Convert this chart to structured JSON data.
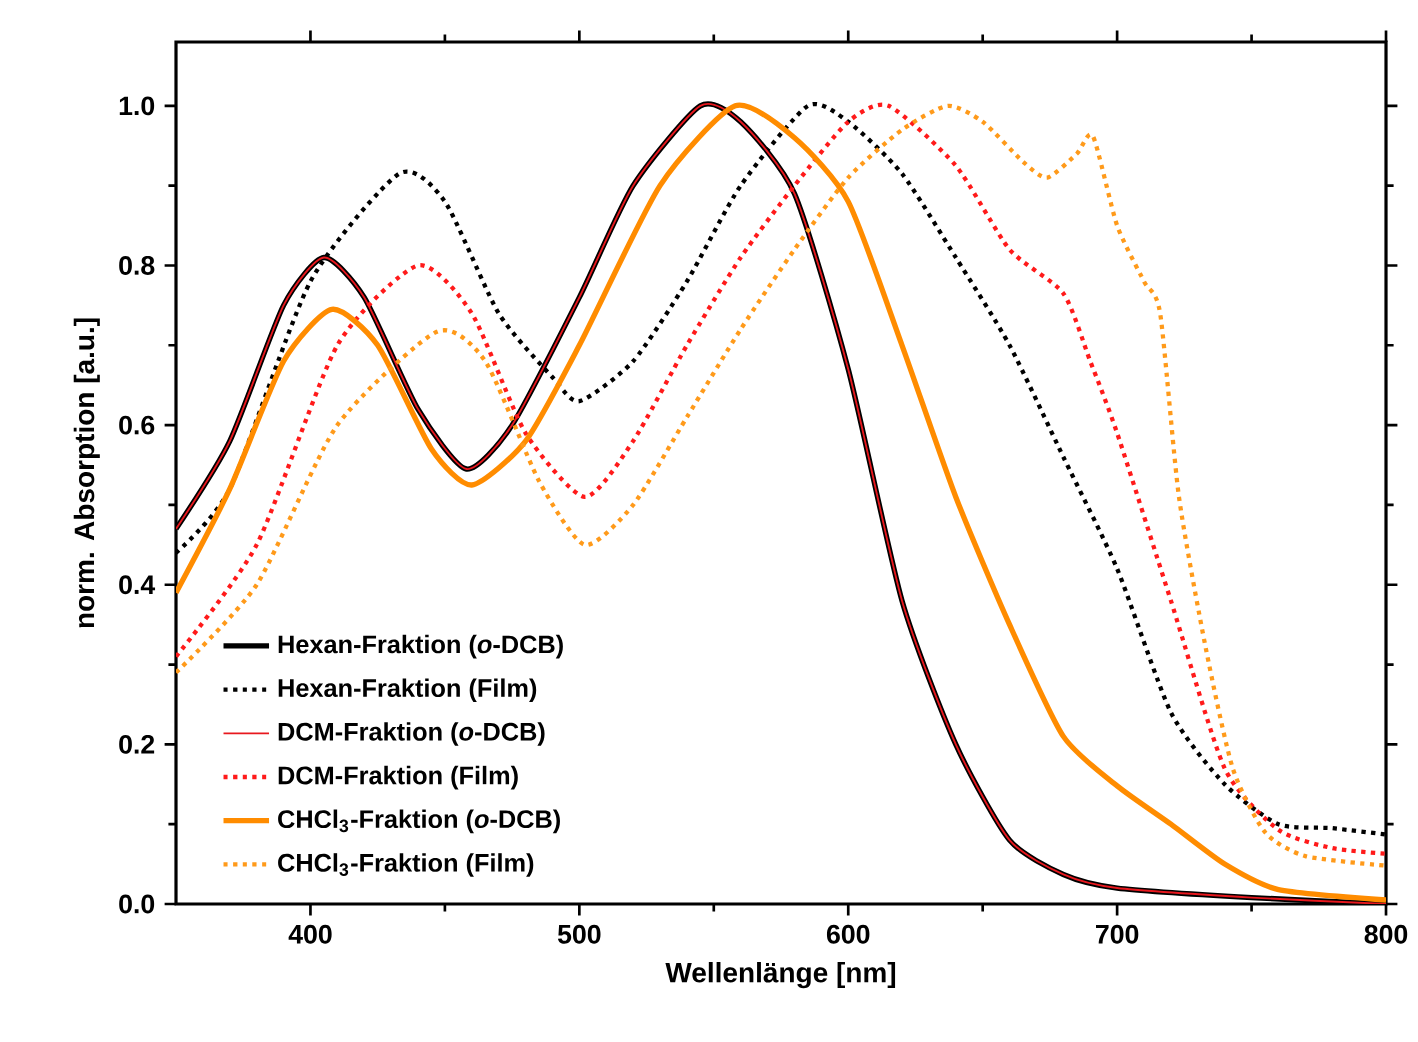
{
  "chart_data": {
    "type": "line",
    "xlabel": "Wellenlänge [nm]",
    "ylabel": "norm. Absorption [a.u.]",
    "xlim": [
      350,
      800
    ],
    "ylim": [
      0,
      1.08
    ],
    "xticks": [
      400,
      500,
      600,
      700,
      800
    ],
    "yticks": [
      {
        "value": 0,
        "label": "0.0"
      },
      {
        "value": 0.2,
        "label": "0.2"
      },
      {
        "value": 0.4,
        "label": "0.4"
      },
      {
        "value": 0.6,
        "label": "0.6"
      },
      {
        "value": 0.8,
        "label": "0.8"
      },
      {
        "value": 1.0,
        "label": "1.0"
      }
    ],
    "legend": "bottom left",
    "series": [
      {
        "name": "Hexan-Fraktion (*o*-DCB)",
        "color": "#000000",
        "line_style": "solid",
        "x": [
          350,
          370,
          390,
          405,
          420,
          440,
          458,
          475,
          500,
          520,
          545,
          560,
          580,
          600,
          620,
          640,
          660,
          680,
          700,
          750,
          800
        ],
        "values": [
          0.47,
          0.58,
          0.75,
          0.81,
          0.76,
          0.62,
          0.545,
          0.6,
          0.76,
          0.9,
          1.0,
          0.98,
          0.89,
          0.67,
          0.38,
          0.2,
          0.08,
          0.037,
          0.02,
          0.008,
          0.0
        ]
      },
      {
        "name": "Hexan-Fraktion (Film)",
        "color": "#000000",
        "line_style": "dotted",
        "x": [
          350,
          370,
          400,
          433,
          450,
          470,
          490,
          500,
          520,
          540,
          560,
          585,
          600,
          620,
          640,
          660,
          680,
          700,
          720,
          740,
          760,
          780,
          800
        ],
        "values": [
          0.44,
          0.52,
          0.78,
          0.915,
          0.88,
          0.74,
          0.66,
          0.63,
          0.68,
          0.78,
          0.9,
          1.0,
          0.98,
          0.915,
          0.81,
          0.7,
          0.56,
          0.42,
          0.24,
          0.15,
          0.1,
          0.095,
          0.087
        ]
      },
      {
        "name": "DCM-Fraktion (*o*-DCB)",
        "color": "#e8181e",
        "line_style": "solid",
        "x": [
          350,
          370,
          390,
          405,
          420,
          440,
          458,
          475,
          500,
          520,
          545,
          560,
          580,
          600,
          620,
          640,
          660,
          680,
          700,
          750,
          800
        ],
        "values": [
          0.47,
          0.58,
          0.75,
          0.81,
          0.76,
          0.62,
          0.545,
          0.6,
          0.76,
          0.9,
          1.0,
          0.98,
          0.89,
          0.67,
          0.38,
          0.2,
          0.08,
          0.037,
          0.02,
          0.008,
          0.0
        ]
      },
      {
        "name": "DCM-Fraktion (Film)",
        "color": "#ff1a1a",
        "line_style": "dotted",
        "x": [
          350,
          380,
          410,
          440,
          460,
          480,
          502,
          520,
          540,
          560,
          580,
          600,
          615,
          640,
          660,
          680,
          690,
          700,
          720,
          740,
          760,
          780,
          800
        ],
        "values": [
          0.31,
          0.45,
          0.7,
          0.8,
          0.74,
          0.59,
          0.51,
          0.58,
          0.7,
          0.81,
          0.9,
          0.98,
          1.0,
          0.925,
          0.82,
          0.765,
          0.68,
          0.59,
          0.38,
          0.17,
          0.093,
          0.07,
          0.063
        ]
      },
      {
        "name": "CHCl$_{3}$-Fraktion (*o*-DCB)",
        "color": "#ff8c00",
        "line_style": "solid",
        "x": [
          350,
          370,
          390,
          408,
          425,
          445,
          460,
          480,
          500,
          530,
          558,
          580,
          600,
          620,
          640,
          660,
          680,
          700,
          720,
          740,
          760,
          800
        ],
        "values": [
          0.39,
          0.52,
          0.68,
          0.745,
          0.7,
          0.57,
          0.525,
          0.58,
          0.7,
          0.9,
          1.0,
          0.96,
          0.88,
          0.7,
          0.51,
          0.35,
          0.21,
          0.148,
          0.1,
          0.05,
          0.018,
          0.005
        ]
      },
      {
        "name": "CHCl$_{3}$-Fraktion (Film)",
        "color": "#ff9a1a",
        "line_style": "dotted",
        "x": [
          350,
          380,
          410,
          447,
          465,
          485,
          502,
          520,
          540,
          560,
          580,
          600,
          620,
          637,
          650,
          665,
          674,
          685,
          691,
          700,
          710,
          716,
          723,
          733,
          743,
          755,
          770,
          800
        ],
        "values": [
          0.29,
          0.4,
          0.6,
          0.717,
          0.68,
          0.53,
          0.45,
          0.5,
          0.61,
          0.72,
          0.82,
          0.91,
          0.97,
          1.0,
          0.98,
          0.93,
          0.91,
          0.94,
          0.962,
          0.85,
          0.78,
          0.74,
          0.51,
          0.32,
          0.17,
          0.09,
          0.06,
          0.048
        ]
      }
    ]
  }
}
